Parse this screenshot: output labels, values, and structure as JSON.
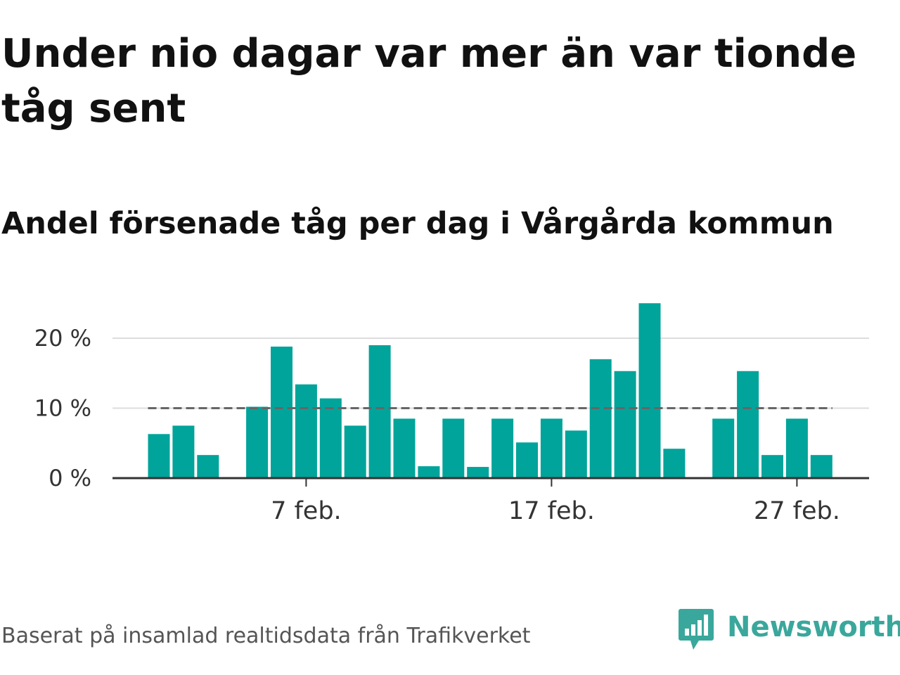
{
  "title": "Under nio dagar var mer än var tionde tåg sent",
  "subtitle": "Andel försenade tåg per dag i Vårgårda kommun",
  "source": "Baserat på insamlad realtidsdata från Trafikverket",
  "brand": {
    "name": "Newsworthy",
    "icon": "newsworthy-logo-icon",
    "color": "#3aa79c"
  },
  "colors": {
    "bar": "#00a49a",
    "reference_line": "#666666",
    "grid": "#dddddd"
  },
  "chart_data": {
    "type": "bar",
    "x": [
      "2024-02-01",
      "2024-02-02",
      "2024-02-03",
      "2024-02-04",
      "2024-02-05",
      "2024-02-06",
      "2024-02-07",
      "2024-02-08",
      "2024-02-09",
      "2024-02-10",
      "2024-02-11",
      "2024-02-12",
      "2024-02-13",
      "2024-02-14",
      "2024-02-15",
      "2024-02-16",
      "2024-02-17",
      "2024-02-18",
      "2024-02-19",
      "2024-02-20",
      "2024-02-21",
      "2024-02-22",
      "2024-02-23",
      "2024-02-24",
      "2024-02-25",
      "2024-02-26",
      "2024-02-27",
      "2024-02-28",
      "2024-02-29"
    ],
    "values": [
      6.3,
      7.5,
      3.3,
      null,
      10.2,
      18.8,
      13.4,
      11.4,
      7.5,
      19.0,
      8.5,
      1.7,
      8.5,
      1.6,
      8.5,
      5.1,
      8.5,
      6.8,
      17.0,
      15.3,
      25.0,
      4.2,
      null,
      8.5,
      15.3,
      3.3,
      8.5,
      3.3,
      null
    ],
    "reference_line": 10,
    "ylim": [
      0,
      25
    ],
    "yticks": [
      0,
      10,
      20
    ],
    "ytick_labels": [
      "0 %",
      "10 %",
      "20 %"
    ],
    "xticks": [
      "2024-02-07",
      "2024-02-17",
      "2024-02-27"
    ],
    "xtick_labels": [
      "7 feb.",
      "17 feb.",
      "27 feb."
    ],
    "grid": true
  }
}
